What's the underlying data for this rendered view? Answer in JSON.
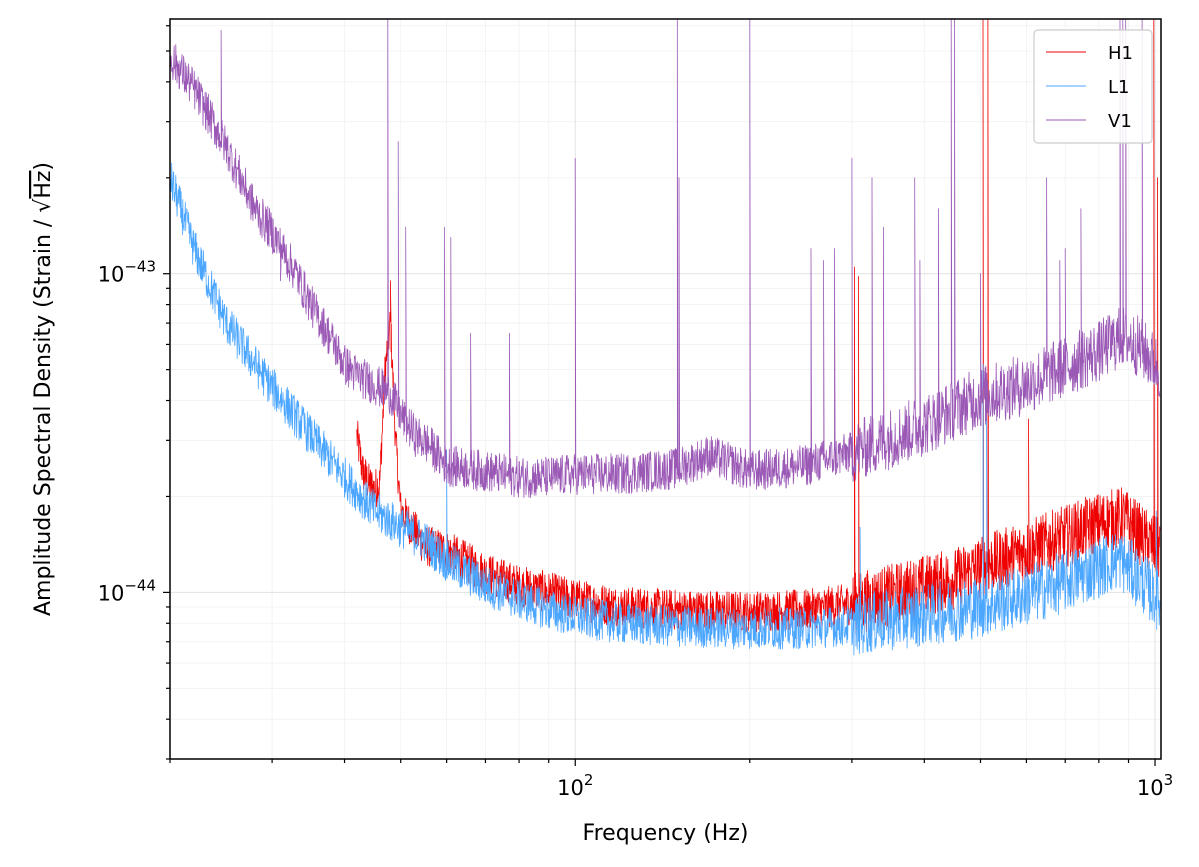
{
  "chart_data": {
    "type": "line",
    "xlabel": "Frequency (Hz)",
    "ylabel_prefix": "Amplitude Spectral Density (Strain / ",
    "ylabel_sqrt": "Hz",
    "ylabel_suffix": ")",
    "xscale": "log",
    "yscale": "log",
    "xlim": [
      20,
      1024
    ],
    "ylim": [
      3e-45,
      6.3e-43
    ],
    "grid": true,
    "legend_position": "top-right",
    "x_tick_labels": [
      {
        "value": 100,
        "base": "10",
        "exp": "2"
      },
      {
        "value": 1000,
        "base": "10",
        "exp": "3"
      }
    ],
    "y_tick_labels": [
      {
        "value": 1e-44,
        "base": "10",
        "exp": "−44"
      },
      {
        "value": 1e-43,
        "base": "10",
        "exp": "−43"
      }
    ],
    "series": [
      {
        "name": "H1",
        "color": "#ee0000",
        "points": [
          [
            42,
            3.1e-44
          ],
          [
            43,
            2.4e-44
          ],
          [
            44,
            2.2e-44
          ],
          [
            45,
            2.1e-44
          ],
          [
            46,
            2.2e-44
          ],
          [
            47,
            5e-44
          ],
          [
            48,
            7e-44
          ],
          [
            49,
            3e-44
          ],
          [
            50,
            1.8e-44
          ],
          [
            55,
            1.4e-44
          ],
          [
            60,
            1.35e-44
          ],
          [
            70,
            1.15e-44
          ],
          [
            80,
            1.05e-44
          ],
          [
            90,
            1e-44
          ],
          [
            100,
            9.5e-45
          ],
          [
            120,
            9e-45
          ],
          [
            150,
            8.8e-45
          ],
          [
            200,
            8.7e-45
          ],
          [
            250,
            8.8e-45
          ],
          [
            300,
            9.2e-45
          ],
          [
            350,
            9.8e-45
          ],
          [
            400,
            1.05e-44
          ],
          [
            450,
            1.1e-44
          ],
          [
            500,
            1.2e-44
          ],
          [
            600,
            1.35e-44
          ],
          [
            700,
            1.5e-44
          ],
          [
            800,
            1.65e-44
          ],
          [
            880,
            1.72e-44
          ],
          [
            950,
            1.5e-44
          ],
          [
            1020,
            1.35e-44
          ]
        ],
        "spikes": [
          [
            48,
            9.5e-44
          ],
          [
            303,
            1.05e-43
          ],
          [
            308,
            9.8e-44
          ],
          [
            505,
            6.3e-43
          ],
          [
            515,
            6.3e-43
          ],
          [
            605,
            3.5e-44
          ],
          [
            995,
            6.3e-43
          ],
          [
            1010,
            2e-43
          ]
        ]
      },
      {
        "name": "L1",
        "color": "#4ba6ff",
        "points": [
          [
            20,
            2e-43
          ],
          [
            22,
            1.2e-43
          ],
          [
            25,
            7e-44
          ],
          [
            28,
            5.2e-44
          ],
          [
            30,
            4.4e-44
          ],
          [
            35,
            3.1e-44
          ],
          [
            40,
            2.3e-44
          ],
          [
            45,
            1.8e-44
          ],
          [
            50,
            1.6e-44
          ],
          [
            55,
            1.45e-44
          ],
          [
            60,
            1.25e-44
          ],
          [
            70,
            1.05e-44
          ],
          [
            80,
            9.5e-45
          ],
          [
            90,
            8.8e-45
          ],
          [
            100,
            8.4e-45
          ],
          [
            120,
            8e-45
          ],
          [
            150,
            7.8e-45
          ],
          [
            200,
            7.7e-45
          ],
          [
            250,
            7.7e-45
          ],
          [
            300,
            7.9e-45
          ],
          [
            350,
            8.2e-45
          ],
          [
            400,
            8.5e-45
          ],
          [
            500,
            9e-45
          ],
          [
            600,
            9.8e-45
          ],
          [
            700,
            1.08e-44
          ],
          [
            800,
            1.2e-44
          ],
          [
            870,
            1.27e-44
          ],
          [
            950,
            1.08e-44
          ],
          [
            1020,
            9.3e-45
          ]
        ],
        "spikes": [
          [
            60,
            2.8e-44
          ],
          [
            310,
            1.6e-44
          ],
          [
            505,
            5.2e-44
          ],
          [
            512,
            4.5e-44
          ],
          [
            1005,
            1.8e-44
          ]
        ]
      },
      {
        "name": "V1",
        "color": "#9b59b6",
        "points": [
          [
            20,
            4.8e-43
          ],
          [
            22,
            3.8e-43
          ],
          [
            25,
            2.5e-43
          ],
          [
            28,
            1.6e-43
          ],
          [
            30,
            1.35e-43
          ],
          [
            33,
            1e-43
          ],
          [
            35,
            8e-44
          ],
          [
            38,
            6.2e-44
          ],
          [
            40,
            5.2e-44
          ],
          [
            42,
            4.8e-44
          ],
          [
            45,
            4.5e-44
          ],
          [
            48,
            4.2e-44
          ],
          [
            50,
            3.6e-44
          ],
          [
            53,
            3.1e-44
          ],
          [
            56,
            2.9e-44
          ],
          [
            60,
            2.5e-44
          ],
          [
            70,
            2.4e-44
          ],
          [
            80,
            2.3e-44
          ],
          [
            90,
            2.3e-44
          ],
          [
            100,
            2.35e-44
          ],
          [
            120,
            2.35e-44
          ],
          [
            150,
            2.45e-44
          ],
          [
            170,
            2.7e-44
          ],
          [
            200,
            2.4e-44
          ],
          [
            250,
            2.5e-44
          ],
          [
            300,
            2.75e-44
          ],
          [
            350,
            3.05e-44
          ],
          [
            400,
            3.35e-44
          ],
          [
            450,
            3.75e-44
          ],
          [
            500,
            4.1e-44
          ],
          [
            600,
            4.5e-44
          ],
          [
            700,
            5.1e-44
          ],
          [
            800,
            5.7e-44
          ],
          [
            880,
            6.4e-44
          ],
          [
            950,
            5.8e-44
          ],
          [
            1020,
            5e-44
          ]
        ],
        "spikes": [
          [
            24.5,
            5.8e-43
          ],
          [
            31,
            9.5e-44
          ],
          [
            47.5,
            6.3e-43
          ],
          [
            49.5,
            2.6e-43
          ],
          [
            51,
            1.4e-43
          ],
          [
            59.5,
            1.4e-43
          ],
          [
            61,
            1.3e-43
          ],
          [
            66,
            6.5e-44
          ],
          [
            77,
            6.5e-44
          ],
          [
            100,
            2.3e-43
          ],
          [
            150,
            6.3e-43
          ],
          [
            151,
            2e-43
          ],
          [
            200,
            6.3e-43
          ],
          [
            255,
            1.2e-43
          ],
          [
            268,
            1.1e-43
          ],
          [
            280,
            1.2e-43
          ],
          [
            300,
            2.3e-43
          ],
          [
            325,
            2e-43
          ],
          [
            340,
            1.4e-43
          ],
          [
            385,
            2e-43
          ],
          [
            393,
            1.1e-43
          ],
          [
            423,
            1.6e-43
          ],
          [
            445,
            6.3e-43
          ],
          [
            451,
            6.3e-43
          ],
          [
            500,
            1e-43
          ],
          [
            650,
            2e-43
          ],
          [
            685,
            1.1e-43
          ],
          [
            700,
            1.2e-43
          ],
          [
            745,
            1.6e-43
          ],
          [
            870,
            6.3e-43
          ],
          [
            880,
            6.3e-43
          ],
          [
            890,
            6.3e-43
          ],
          [
            950,
            6.3e-43
          ]
        ]
      }
    ]
  }
}
